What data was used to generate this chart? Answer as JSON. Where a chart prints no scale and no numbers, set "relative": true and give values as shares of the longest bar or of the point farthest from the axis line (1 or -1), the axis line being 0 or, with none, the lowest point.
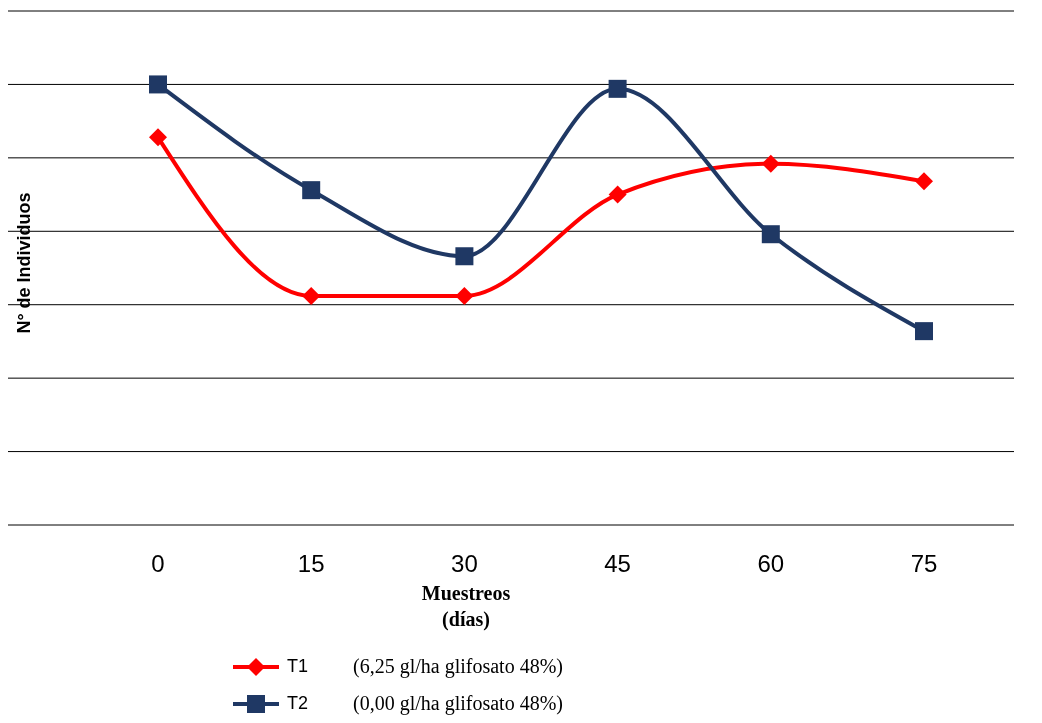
{
  "chart_data": {
    "type": "line",
    "relative": true,
    "xlabel": "Muestreos\n(días)",
    "ylabel": "N° de Individuos",
    "categories": [
      "0",
      "15",
      "30",
      "45",
      "60",
      "75"
    ],
    "series": [
      {
        "name": "T1",
        "color": "#ff0000",
        "marker": "diamond",
        "values": [
          0.88,
          0.52,
          0.52,
          0.75,
          0.82,
          0.78
        ]
      },
      {
        "name": "T2",
        "color": "#1f3864",
        "marker": "square",
        "values": [
          1,
          0.76,
          0.61,
          0.99,
          0.66,
          0.44
        ]
      }
    ],
    "annotations": [
      "(6,25 gl/ha glifosato 48%)",
      "(0,00 gl/ha glifosato 48%)"
    ],
    "grid": "y",
    "legend": "bottom"
  }
}
